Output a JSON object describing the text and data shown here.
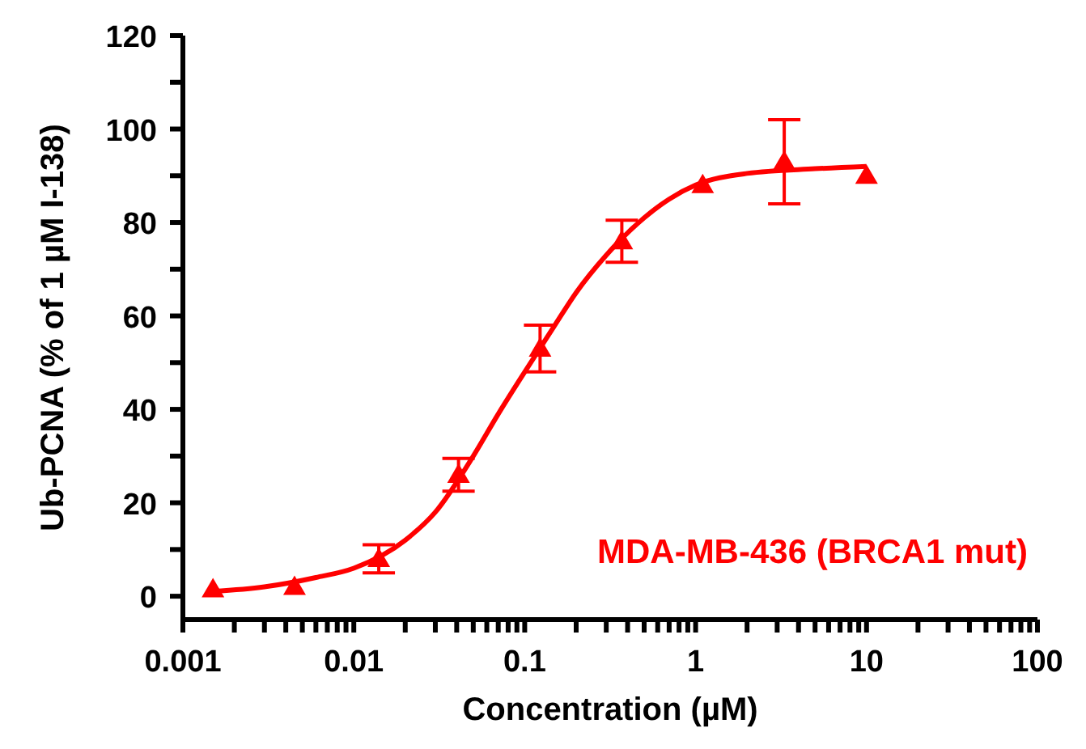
{
  "chart_data": {
    "type": "scatter",
    "xlabel": "Concentration (µM)",
    "ylabel": "Ub-PCNA (% of 1 µM I-138)",
    "log": "x",
    "marker": "triangle",
    "xlim": [
      0.001,
      100
    ],
    "ylim": [
      -5,
      120
    ],
    "xticks": [
      {
        "value": 0.001,
        "label": "0.001"
      },
      {
        "value": 0.002,
        "label": null
      },
      {
        "value": 0.003,
        "label": null
      },
      {
        "value": 0.004,
        "label": null
      },
      {
        "value": 0.005,
        "label": null
      },
      {
        "value": 0.006,
        "label": null
      },
      {
        "value": 0.007,
        "label": null
      },
      {
        "value": 0.008,
        "label": null
      },
      {
        "value": 0.009,
        "label": null
      },
      {
        "value": 0.01,
        "label": "0.01"
      },
      {
        "value": 0.02,
        "label": null
      },
      {
        "value": 0.03,
        "label": null
      },
      {
        "value": 0.04,
        "label": null
      },
      {
        "value": 0.05,
        "label": null
      },
      {
        "value": 0.06,
        "label": null
      },
      {
        "value": 0.07,
        "label": null
      },
      {
        "value": 0.08,
        "label": null
      },
      {
        "value": 0.09,
        "label": null
      },
      {
        "value": 0.1,
        "label": "0.1"
      },
      {
        "value": 0.2,
        "label": null
      },
      {
        "value": 0.3,
        "label": null
      },
      {
        "value": 0.4,
        "label": null
      },
      {
        "value": 0.5,
        "label": null
      },
      {
        "value": 0.6,
        "label": null
      },
      {
        "value": 0.7,
        "label": null
      },
      {
        "value": 0.8,
        "label": null
      },
      {
        "value": 0.9,
        "label": null
      },
      {
        "value": 1,
        "label": "1"
      },
      {
        "value": 2,
        "label": null
      },
      {
        "value": 3,
        "label": null
      },
      {
        "value": 4,
        "label": null
      },
      {
        "value": 5,
        "label": null
      },
      {
        "value": 6,
        "label": null
      },
      {
        "value": 7,
        "label": null
      },
      {
        "value": 8,
        "label": null
      },
      {
        "value": 9,
        "label": null
      },
      {
        "value": 10,
        "label": "10"
      },
      {
        "value": 20,
        "label": null
      },
      {
        "value": 30,
        "label": null
      },
      {
        "value": 40,
        "label": null
      },
      {
        "value": 50,
        "label": null
      },
      {
        "value": 60,
        "label": null
      },
      {
        "value": 70,
        "label": null
      },
      {
        "value": 80,
        "label": null
      },
      {
        "value": 90,
        "label": null
      },
      {
        "value": 100,
        "label": "100"
      }
    ],
    "yticks": [
      0,
      {
        "value": 10,
        "label": null
      },
      20,
      {
        "value": 30,
        "label": null
      },
      40,
      {
        "value": 50,
        "label": null
      },
      60,
      {
        "value": 70,
        "label": null
      },
      80,
      {
        "value": 90,
        "label": null
      },
      100,
      {
        "value": 110,
        "label": null
      },
      120
    ],
    "series": [
      {
        "name": "MDA-MB-436 (BRCA1 mut)",
        "color": "#ff0000",
        "x": [
          0.0015,
          0.0045,
          0.014,
          0.041,
          0.123,
          0.37,
          1.1,
          3.3,
          10
        ],
        "values": [
          1.5,
          2,
          8,
          26,
          53,
          76,
          88,
          93,
          90
        ],
        "errors": [
          null,
          null,
          3,
          3.5,
          5,
          4.5,
          null,
          9,
          null
        ]
      },
      {
        "type": "line",
        "color": "#ff0000",
        "marker": "none",
        "x": [
          0.0015,
          0.003,
          0.006,
          0.01,
          0.02,
          0.03,
          0.05,
          0.07,
          0.1,
          0.15,
          0.2,
          0.3,
          0.5,
          0.7,
          1,
          2,
          5,
          10
        ],
        "values": [
          1,
          2,
          4,
          6,
          12,
          18,
          30,
          39,
          48,
          58,
          65,
          73,
          81,
          85,
          88,
          90.5,
          91.5,
          92
        ]
      }
    ]
  }
}
